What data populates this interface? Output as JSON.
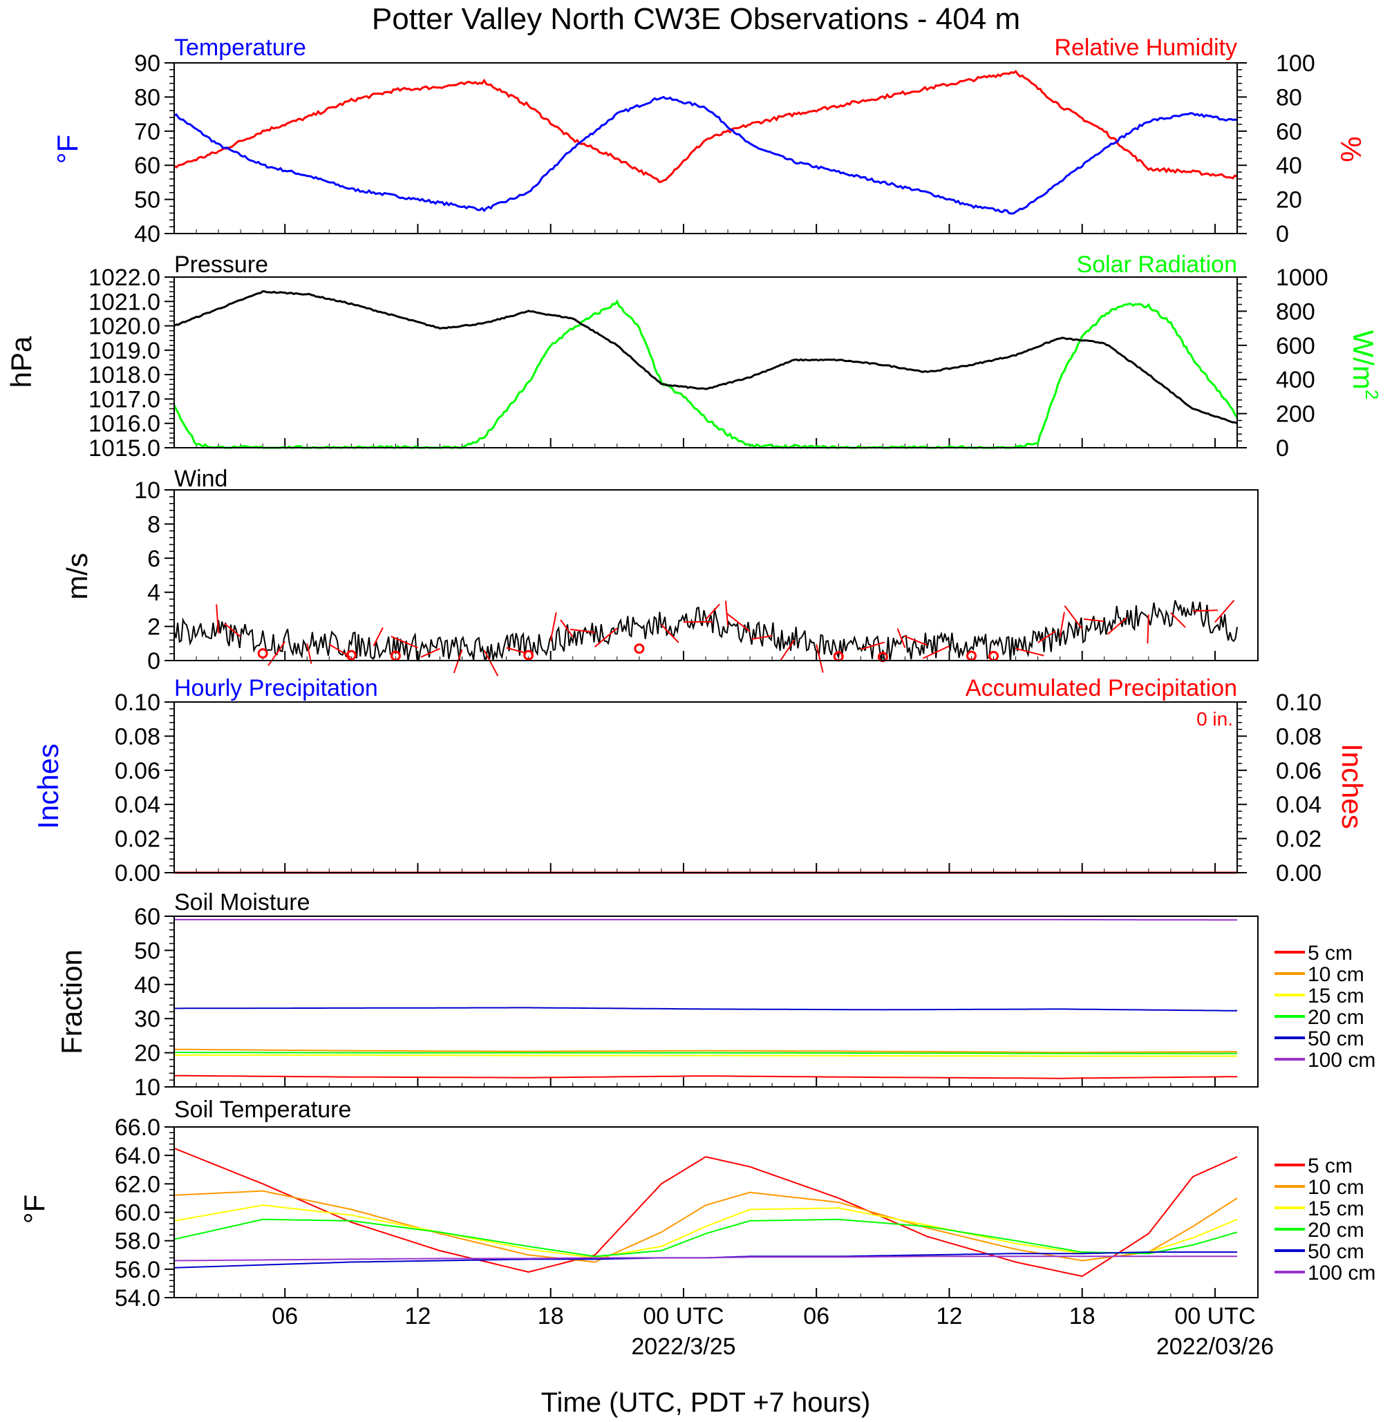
{
  "title": "Potter Valley North CW3E Observations - 404 m",
  "xaxis": {
    "title": "Time (UTC, PDT +7 hours)",
    "range_hours": [
      0,
      48
    ],
    "ticks": [
      {
        "h": 5,
        "label": "06",
        "sub": ""
      },
      {
        "h": 11,
        "label": "12",
        "sub": ""
      },
      {
        "h": 17,
        "label": "18",
        "sub": ""
      },
      {
        "h": 23,
        "label": "00 UTC",
        "sub": "2022/3/25"
      },
      {
        "h": 29,
        "label": "06",
        "sub": ""
      },
      {
        "h": 35,
        "label": "12",
        "sub": ""
      },
      {
        "h": 41,
        "label": "18",
        "sub": ""
      },
      {
        "h": 47,
        "label": "00 UTC",
        "sub": "2022/03/26"
      }
    ]
  },
  "panels": {
    "temp_rh": {
      "title_left": "Temperature",
      "title_right": "Relative Humidity",
      "ylabel_left": "°F",
      "ylabel_right": "%",
      "left_range": [
        40,
        90
      ],
      "left_ticks": [
        "40",
        "50",
        "60",
        "70",
        "80",
        "90"
      ],
      "right_range": [
        0,
        100
      ],
      "right_ticks": [
        "0",
        "20",
        "40",
        "60",
        "80",
        "100"
      ],
      "colors": {
        "temperature": "#0000ff",
        "humidity": "#ff0000"
      }
    },
    "pressure_solar": {
      "title_left": "Pressure",
      "title_right": "Solar Radiation",
      "ylabel_left": "hPa",
      "ylabel_right_base": "W/m",
      "ylabel_right_sup": "2",
      "left_range": [
        1015,
        1022
      ],
      "left_ticks": [
        "1015.0",
        "1016.0",
        "1017.0",
        "1018.0",
        "1019.0",
        "1020.0",
        "1021.0",
        "1022.0"
      ],
      "right_range": [
        0,
        1000
      ],
      "right_ticks": [
        "0",
        "200",
        "400",
        "600",
        "800",
        "1000"
      ],
      "colors": {
        "pressure": "#000000",
        "solar": "#00ff00"
      }
    },
    "wind": {
      "title_left": "Wind",
      "ylabel_left": "m/s",
      "left_range": [
        0,
        10
      ],
      "left_ticks": [
        "0",
        "2",
        "4",
        "6",
        "8",
        "10"
      ],
      "colors": {
        "speed": "#000000",
        "barbs": "#ff0000"
      }
    },
    "precip": {
      "title_left": "Hourly Precipitation",
      "title_right": "Accumulated Precipitation",
      "total_label": "0 in.",
      "ylabel_left": "Inches",
      "ylabel_right": "Inches",
      "left_range": [
        0,
        0.1
      ],
      "left_ticks": [
        "0.00",
        "0.02",
        "0.04",
        "0.06",
        "0.08",
        "0.10"
      ],
      "right_ticks": [
        "0.00",
        "0.02",
        "0.04",
        "0.06",
        "0.08",
        "0.10"
      ],
      "colors": {
        "hourly": "#0000ff",
        "accumulated": "#ff0000"
      }
    },
    "soil_moisture": {
      "title_left": "Soil Moisture",
      "ylabel_left": "Fraction",
      "left_range": [
        10,
        60
      ],
      "left_ticks": [
        "10",
        "20",
        "30",
        "40",
        "50",
        "60"
      ]
    },
    "soil_temp": {
      "title_left": "Soil Temperature",
      "ylabel_left": "°F",
      "left_range": [
        54,
        66
      ],
      "left_ticks": [
        "54.0",
        "56.0",
        "58.0",
        "60.0",
        "62.0",
        "64.0",
        "66.0"
      ]
    }
  },
  "legend": {
    "labels": [
      "5 cm",
      "10 cm",
      "15 cm",
      "20 cm",
      "50 cm",
      "100 cm"
    ],
    "colors": [
      "#ff0000",
      "#ff9900",
      "#ffff00",
      "#00ff00",
      "#0000cc",
      "#9933cc"
    ]
  },
  "chart_data": [
    {
      "type": "line",
      "title": "Temperature",
      "ylabel": "°F",
      "ylim": [
        40,
        90
      ],
      "x_hours": [
        0,
        2,
        4,
        6,
        8,
        10,
        12,
        14,
        16,
        18,
        20,
        22,
        24,
        26,
        28,
        30,
        32,
        34,
        36,
        38,
        40,
        42,
        44,
        46,
        48
      ],
      "series": [
        {
          "name": "Temperature",
          "values": [
            75,
            66,
            60,
            57,
            53,
            51,
            49,
            47,
            52,
            65,
            75,
            80,
            77,
            66,
            61,
            58,
            55,
            52,
            48,
            46,
            55,
            65,
            73,
            75,
            73
          ]
        }
      ]
    },
    {
      "type": "line",
      "title": "Relative Humidity",
      "ylabel": "%",
      "ylim": [
        0,
        100
      ],
      "x_hours": [
        0,
        2,
        4,
        6,
        8,
        10,
        12,
        14,
        16,
        18,
        20,
        22,
        24,
        26,
        28,
        30,
        32,
        34,
        36,
        38,
        40,
        42,
        44,
        46,
        48
      ],
      "series": [
        {
          "name": "Relative Humidity",
          "values": [
            39,
            48,
            60,
            68,
            78,
            84,
            86,
            89,
            75,
            55,
            44,
            30,
            55,
            64,
            70,
            75,
            80,
            85,
            90,
            95,
            75,
            60,
            38,
            36,
            33
          ]
        }
      ]
    },
    {
      "type": "line",
      "title": "Pressure",
      "ylabel": "hPa",
      "ylim": [
        1015,
        1022
      ],
      "x_hours": [
        0,
        2,
        4,
        6,
        8,
        10,
        12,
        14,
        16,
        18,
        20,
        22,
        24,
        26,
        28,
        30,
        32,
        34,
        36,
        38,
        40,
        42,
        44,
        46,
        48
      ],
      "series": [
        {
          "name": "Pressure",
          "values": [
            1020.0,
            1020.7,
            1021.4,
            1021.3,
            1020.9,
            1020.4,
            1019.9,
            1020.1,
            1020.6,
            1020.3,
            1019.2,
            1017.6,
            1017.4,
            1017.9,
            1018.6,
            1018.6,
            1018.4,
            1018.1,
            1018.4,
            1018.8,
            1019.5,
            1019.3,
            1018.0,
            1016.6,
            1016.0
          ]
        }
      ]
    },
    {
      "type": "line",
      "title": "Solar Radiation",
      "ylabel": "W/m2",
      "ylim": [
        0,
        1000
      ],
      "x_hours": [
        0,
        1,
        2,
        6,
        10,
        13,
        14,
        15,
        16,
        17,
        18,
        19,
        20,
        21,
        22,
        23,
        24,
        25,
        26,
        30,
        35,
        38,
        39,
        40,
        41,
        42,
        43,
        44,
        45,
        46,
        47,
        48
      ],
      "series": [
        {
          "name": "Solar Radiation",
          "values": [
            240,
            20,
            0,
            0,
            0,
            0,
            60,
            220,
            380,
            600,
            700,
            780,
            850,
            700,
            380,
            300,
            170,
            80,
            10,
            0,
            0,
            0,
            30,
            400,
            650,
            780,
            840,
            830,
            730,
            520,
            360,
            180
          ]
        }
      ]
    },
    {
      "type": "line",
      "title": "Wind",
      "ylabel": "m/s",
      "ylim": [
        0,
        10
      ],
      "x_hours": [
        0,
        2,
        4,
        6,
        8,
        10,
        12,
        14,
        16,
        18,
        20,
        22,
        24,
        26,
        28,
        30,
        32,
        34,
        36,
        38,
        40,
        42,
        44,
        46,
        48
      ],
      "series": [
        {
          "name": "Wind speed",
          "values": [
            1.8,
            1.6,
            1.2,
            1.0,
            0.9,
            0.8,
            0.7,
            0.6,
            0.9,
            1.4,
            1.9,
            2.1,
            2.4,
            1.7,
            1.2,
            0.7,
            0.6,
            0.9,
            0.8,
            0.7,
            1.4,
            2.3,
            2.7,
            2.9,
            1.6
          ]
        }
      ]
    },
    {
      "type": "line",
      "title": "Hourly Precipitation",
      "ylabel": "Inches",
      "ylim": [
        0,
        0.1
      ],
      "x_hours": [
        0,
        48
      ],
      "series": [
        {
          "name": "Hourly Precipitation",
          "values": [
            0,
            0
          ]
        },
        {
          "name": "Accumulated Precipitation",
          "values": [
            0,
            0
          ]
        }
      ]
    },
    {
      "type": "line",
      "title": "Soil Moisture",
      "ylabel": "Fraction",
      "ylim": [
        10,
        60
      ],
      "x_hours": [
        0,
        8,
        16,
        24,
        32,
        40,
        48
      ],
      "series": [
        {
          "name": "5 cm",
          "values": [
            13.3,
            12.9,
            12.7,
            13.2,
            12.8,
            12.5,
            13.0
          ]
        },
        {
          "name": "10 cm",
          "values": [
            21.0,
            20.6,
            20.4,
            20.6,
            20.4,
            20.1,
            20.3
          ]
        },
        {
          "name": "15 cm",
          "values": [
            19.3,
            19.3,
            19.2,
            19.2,
            19.1,
            19.0,
            19.0
          ]
        },
        {
          "name": "20 cm",
          "values": [
            20.1,
            20.0,
            20.0,
            20.0,
            19.9,
            19.8,
            19.8
          ]
        },
        {
          "name": "50 cm",
          "values": [
            33.0,
            33.1,
            33.2,
            32.8,
            32.6,
            32.8,
            32.3
          ]
        },
        {
          "name": "100 cm",
          "values": [
            59.0,
            59.0,
            59.0,
            59.0,
            59.0,
            59.0,
            58.9
          ]
        }
      ]
    },
    {
      "type": "line",
      "title": "Soil Temperature",
      "ylabel": "°F",
      "ylim": [
        54,
        66
      ],
      "x_hours": [
        0,
        4,
        8,
        12,
        16,
        19,
        22,
        24,
        26,
        30,
        34,
        38,
        41,
        44,
        46,
        48
      ],
      "series": [
        {
          "name": "5 cm",
          "values": [
            64.5,
            62.0,
            59.3,
            57.3,
            55.8,
            57.0,
            62.0,
            63.9,
            63.2,
            61.0,
            58.3,
            56.5,
            55.5,
            58.5,
            62.5,
            63.9
          ]
        },
        {
          "name": "10 cm",
          "values": [
            61.2,
            61.5,
            60.2,
            58.5,
            57.0,
            56.5,
            58.6,
            60.5,
            61.4,
            60.7,
            58.9,
            57.4,
            56.6,
            57.2,
            59.0,
            61.0
          ]
        },
        {
          "name": "15 cm",
          "values": [
            59.4,
            60.5,
            59.8,
            58.6,
            57.4,
            56.8,
            57.6,
            59.0,
            60.2,
            60.3,
            59.1,
            57.8,
            57.1,
            57.2,
            58.2,
            59.5
          ]
        },
        {
          "name": "20 cm",
          "values": [
            58.1,
            59.5,
            59.4,
            58.6,
            57.6,
            56.9,
            57.3,
            58.5,
            59.4,
            59.5,
            59.0,
            58.0,
            57.2,
            57.1,
            57.7,
            58.6
          ]
        },
        {
          "name": "50 cm",
          "values": [
            56.1,
            56.3,
            56.5,
            56.6,
            56.7,
            56.7,
            56.8,
            56.8,
            56.9,
            56.9,
            57.0,
            57.1,
            57.1,
            57.2,
            57.2,
            57.2
          ]
        },
        {
          "name": "100 cm",
          "values": [
            56.6,
            56.65,
            56.7,
            56.75,
            56.75,
            56.8,
            56.8,
            56.8,
            56.85,
            56.85,
            56.9,
            56.9,
            56.9,
            56.9,
            56.9,
            56.9
          ]
        }
      ]
    }
  ]
}
